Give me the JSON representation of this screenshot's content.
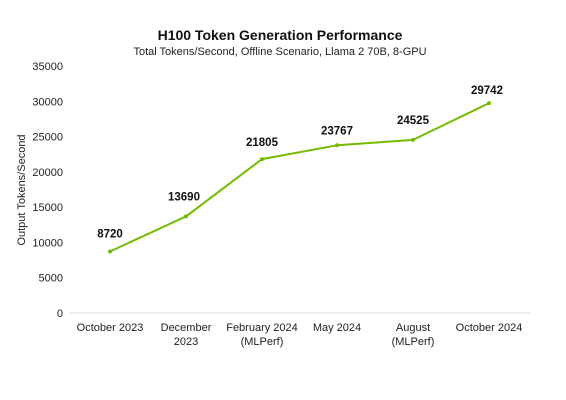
{
  "chart_data": {
    "type": "line",
    "title": "H100 Token Generation Performance",
    "subtitle": "Total Tokens/Second, Offline Scenario, Llama 2 70B, 8-GPU",
    "ylabel": "Output Tokens/Second",
    "xlabel": "",
    "categories": [
      [
        "October 2023"
      ],
      [
        "December",
        "2023"
      ],
      [
        "February 2024",
        "(MLPerf)"
      ],
      [
        "May 2024"
      ],
      [
        "August",
        "(MLPerf)"
      ],
      [
        "October 2024"
      ]
    ],
    "values": [
      8720,
      13690,
      21805,
      23767,
      24525,
      29742
    ],
    "data_labels": [
      "8720",
      "13690",
      "21805",
      "23767",
      "24525",
      "29742"
    ],
    "ylim": [
      0,
      35000
    ],
    "yticks": [
      "0",
      "5000",
      "10000",
      "15000",
      "20000",
      "25000",
      "30000",
      "35000"
    ],
    "grid": false,
    "legend": "none",
    "line_color": "#76b900"
  }
}
